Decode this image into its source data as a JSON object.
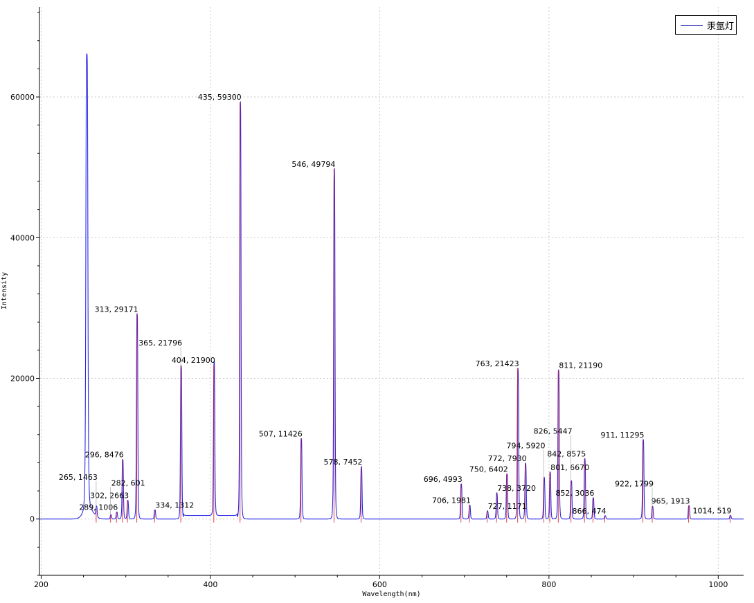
{
  "chart_data": {
    "type": "line",
    "title": "",
    "xlabel": "Wavelength(nm)",
    "ylabel": "Intensity",
    "xlim": [
      198,
      1030
    ],
    "ylim": [
      -8000,
      72800
    ],
    "xticks": [
      200,
      400,
      600,
      800,
      1000
    ],
    "yticks": [
      0,
      20000,
      40000,
      60000
    ],
    "grid": true,
    "legend": {
      "placement": "top-right",
      "entries": [
        "汞氩灯"
      ]
    },
    "colors": {
      "spectrum": "#2a2ae8",
      "peaks": "#e02020"
    },
    "peaks": [
      {
        "x": 265,
        "y": 1463,
        "label": "265, 1463"
      },
      {
        "x": 282,
        "y": 601,
        "label": "282, 601"
      },
      {
        "x": 289,
        "y": 1006,
        "label": "289, 1006"
      },
      {
        "x": 296,
        "y": 8476,
        "label": "296, 8476"
      },
      {
        "x": 302,
        "y": 2663,
        "label": "302, 2663"
      },
      {
        "x": 313,
        "y": 29171,
        "label": "313, 29171"
      },
      {
        "x": 334,
        "y": 1312,
        "label": "334, 1312"
      },
      {
        "x": 365,
        "y": 21796,
        "label": "365, 21796"
      },
      {
        "x": 404,
        "y": 21900,
        "label": "404, 21900"
      },
      {
        "x": 435,
        "y": 59300,
        "label": "435, 59300"
      },
      {
        "x": 507,
        "y": 11426,
        "label": "507, 11426"
      },
      {
        "x": 546,
        "y": 49794,
        "label": "546, 49794"
      },
      {
        "x": 578,
        "y": 7452,
        "label": "578, 7452"
      },
      {
        "x": 696,
        "y": 4993,
        "label": "696, 4993"
      },
      {
        "x": 706,
        "y": 1981,
        "label": "706, 1981"
      },
      {
        "x": 727,
        "y": 1171,
        "label": "727, 1171"
      },
      {
        "x": 738,
        "y": 3720,
        "label": "738, 3720"
      },
      {
        "x": 750,
        "y": 6402,
        "label": "750, 6402"
      },
      {
        "x": 763,
        "y": 21423,
        "label": "763, 21423"
      },
      {
        "x": 772,
        "y": 7930,
        "label": "772, 7930"
      },
      {
        "x": 794,
        "y": 5920,
        "label": "794, 5920"
      },
      {
        "x": 801,
        "y": 6670,
        "label": "801, 6670"
      },
      {
        "x": 811,
        "y": 21190,
        "label": "811, 21190"
      },
      {
        "x": 826,
        "y": 5447,
        "label": "826, 5447"
      },
      {
        "x": 842,
        "y": 8575,
        "label": "842, 8575"
      },
      {
        "x": 852,
        "y": 3036,
        "label": "852, 3036"
      },
      {
        "x": 866,
        "y": 474,
        "label": "866, 474"
      },
      {
        "x": 911,
        "y": 11295,
        "label": "911, 11295"
      },
      {
        "x": 922,
        "y": 1799,
        "label": "922, 1799"
      },
      {
        "x": 965,
        "y": 1913,
        "label": "965, 1913"
      },
      {
        "x": 1014,
        "y": 519,
        "label": "1014, 519"
      }
    ],
    "extra_spectrum_peaks": [
      {
        "x": 254,
        "y": 64700
      }
    ]
  }
}
